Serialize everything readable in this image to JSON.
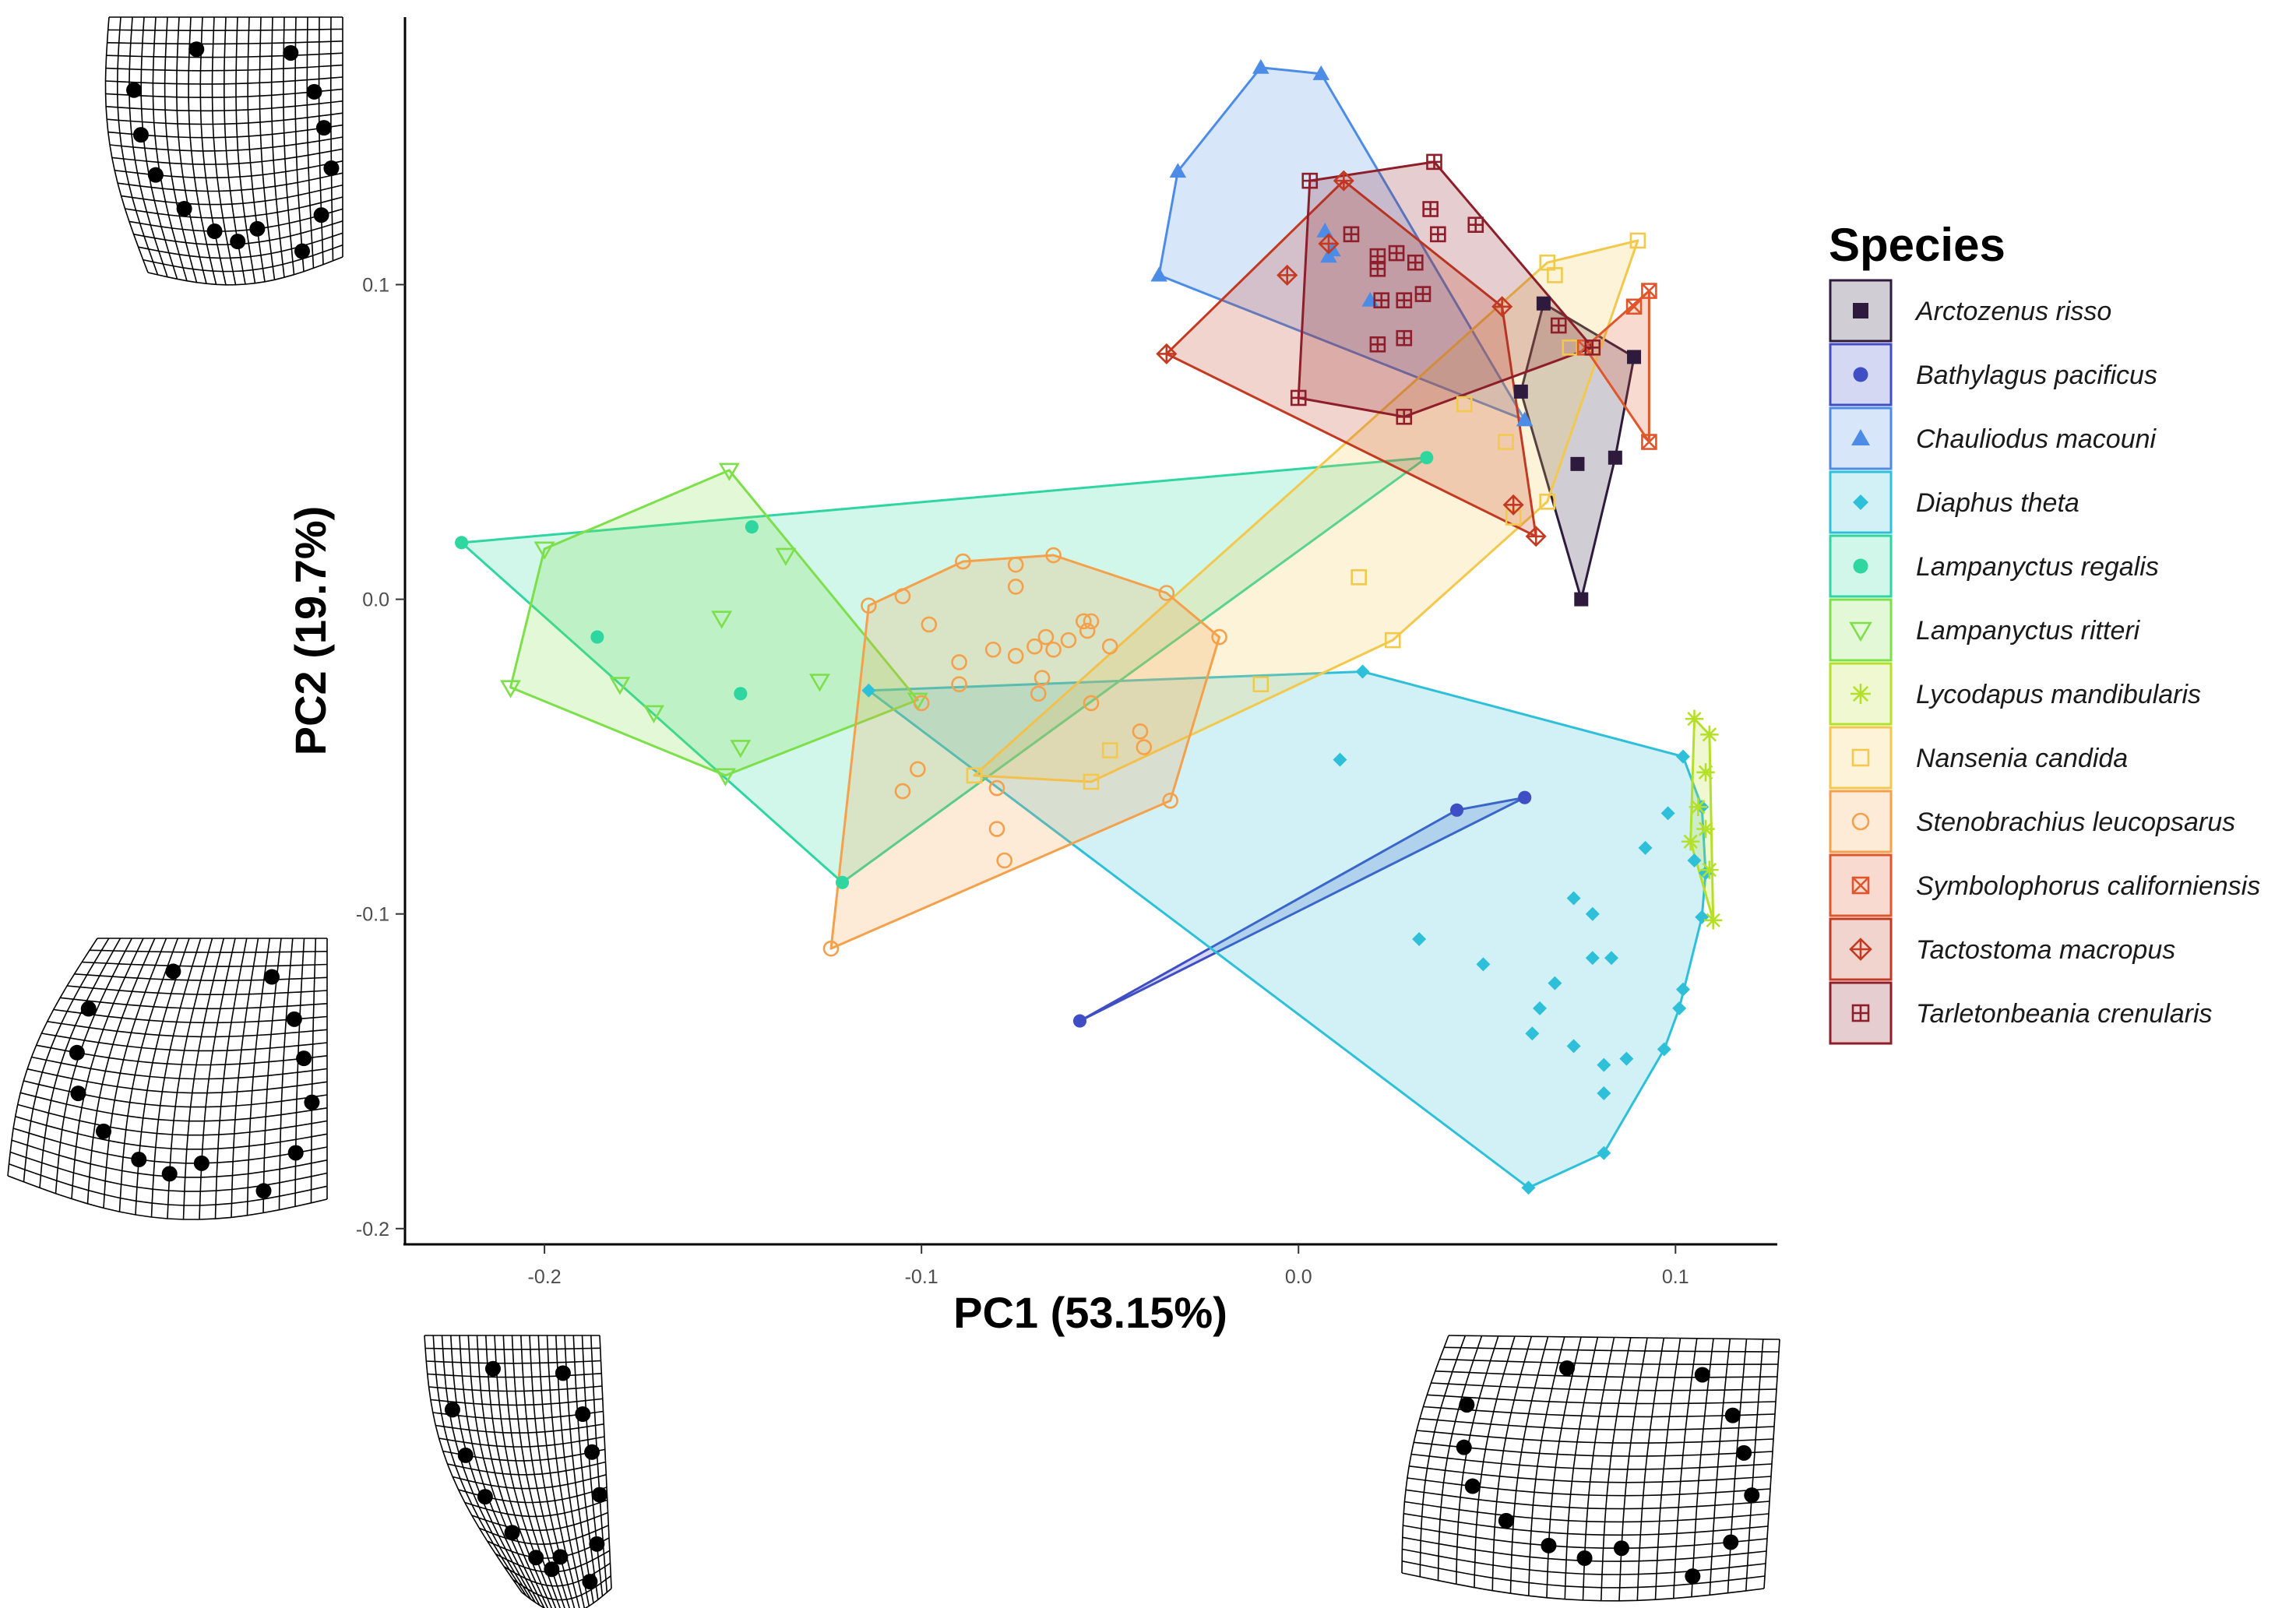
{
  "chart_data": {
    "type": "scatter",
    "xlabel": "PC1 (53.15%)",
    "ylabel": "PC2 (19.7%)",
    "xlim": [
      -0.237,
      0.127
    ],
    "ylim": [
      -0.205,
      0.185
    ],
    "x_ticks": [
      -0.2,
      -0.1,
      0.0,
      0.1
    ],
    "x_tick_labels": [
      "-0.2",
      "-0.1",
      "0.0",
      "0.1"
    ],
    "y_ticks": [
      -0.2,
      -0.1,
      0.0,
      0.1
    ],
    "y_tick_labels": [
      "-0.2",
      "-0.1",
      "0.0",
      "0.1"
    ],
    "grid": false,
    "hulls": true,
    "legend_title": "Species",
    "legend_position": "right",
    "series": [
      {
        "name": "Arctozenus risso",
        "color": "#2d1a3c",
        "marker": "square",
        "points": [
          [
            0.065,
            0.094
          ],
          [
            0.059,
            0.066
          ],
          [
            0.075,
            0.0
          ],
          [
            0.074,
            0.043
          ],
          [
            0.084,
            0.045
          ],
          [
            0.089,
            0.077
          ]
        ]
      },
      {
        "name": "Bathylagus pacificus",
        "color": "#3f4ec4",
        "marker": "circle",
        "points": [
          [
            -0.058,
            -0.134
          ],
          [
            0.042,
            -0.067
          ],
          [
            0.06,
            -0.063
          ]
        ]
      },
      {
        "name": "Chauliodus macouni",
        "color": "#4d8ce6",
        "marker": "triangle",
        "points": [
          [
            -0.01,
            0.169
          ],
          [
            0.006,
            0.167
          ],
          [
            -0.032,
            0.136
          ],
          [
            -0.037,
            0.103
          ],
          [
            0.007,
            0.117
          ],
          [
            0.009,
            0.111
          ],
          [
            0.008,
            0.109
          ],
          [
            0.019,
            0.095
          ],
          [
            0.06,
            0.057
          ]
        ]
      },
      {
        "name": "Diaphus theta",
        "color": "#2fc0d9",
        "marker": "diamond",
        "points": [
          [
            -0.114,
            -0.029
          ],
          [
            0.017,
            -0.023
          ],
          [
            0.011,
            -0.051
          ],
          [
            0.102,
            -0.05
          ],
          [
            0.107,
            -0.066
          ],
          [
            0.098,
            -0.068
          ],
          [
            0.108,
            -0.087
          ],
          [
            0.105,
            -0.083
          ],
          [
            0.092,
            -0.079
          ],
          [
            0.107,
            -0.101
          ],
          [
            0.078,
            -0.1
          ],
          [
            0.073,
            -0.095
          ],
          [
            0.083,
            -0.114
          ],
          [
            0.078,
            -0.114
          ],
          [
            0.032,
            -0.108
          ],
          [
            0.049,
            -0.116
          ],
          [
            0.068,
            -0.122
          ],
          [
            0.102,
            -0.124
          ],
          [
            0.101,
            -0.13
          ],
          [
            0.064,
            -0.13
          ],
          [
            0.097,
            -0.143
          ],
          [
            0.062,
            -0.138
          ],
          [
            0.073,
            -0.142
          ],
          [
            0.081,
            -0.148
          ],
          [
            0.087,
            -0.146
          ],
          [
            0.081,
            -0.157
          ],
          [
            0.081,
            -0.176
          ],
          [
            0.061,
            -0.187
          ]
        ]
      },
      {
        "name": "Lampanyctus regalis",
        "color": "#2fd6a0",
        "marker": "circle",
        "points": [
          [
            -0.222,
            0.018
          ],
          [
            0.034,
            0.045
          ],
          [
            -0.145,
            0.023
          ],
          [
            -0.186,
            -0.012
          ],
          [
            -0.148,
            -0.03
          ],
          [
            -0.121,
            -0.09
          ]
        ]
      },
      {
        "name": "Lampanyctus ritteri",
        "color": "#7ddf4a",
        "marker": "triangle-down",
        "points": [
          [
            -0.151,
            0.041
          ],
          [
            -0.2,
            0.016
          ],
          [
            -0.136,
            0.014
          ],
          [
            -0.153,
            -0.006
          ],
          [
            -0.209,
            -0.028
          ],
          [
            -0.18,
            -0.027
          ],
          [
            -0.171,
            -0.036
          ],
          [
            -0.127,
            -0.026
          ],
          [
            -0.101,
            -0.032
          ],
          [
            -0.148,
            -0.047
          ],
          [
            -0.152,
            -0.056
          ]
        ]
      },
      {
        "name": "Lycodapus mandibularis",
        "color": "#b5e02a",
        "marker": "asterisk",
        "points": [
          [
            0.105,
            -0.038
          ],
          [
            0.109,
            -0.043
          ],
          [
            0.108,
            -0.055
          ],
          [
            0.106,
            -0.066
          ],
          [
            0.108,
            -0.073
          ],
          [
            0.104,
            -0.077
          ],
          [
            0.109,
            -0.086
          ],
          [
            0.11,
            -0.102
          ]
        ]
      },
      {
        "name": "Nansenia candida",
        "color": "#f2c94c",
        "marker": "square-open",
        "points": [
          [
            0.09,
            0.114
          ],
          [
            0.066,
            0.107
          ],
          [
            0.068,
            0.103
          ],
          [
            0.072,
            0.08
          ],
          [
            0.055,
            0.05
          ],
          [
            0.044,
            0.062
          ],
          [
            0.066,
            0.031
          ],
          [
            0.057,
            0.026
          ],
          [
            0.016,
            0.007
          ],
          [
            0.025,
            -0.013
          ],
          [
            -0.01,
            -0.027
          ],
          [
            -0.05,
            -0.048
          ],
          [
            -0.055,
            -0.058
          ],
          [
            -0.086,
            -0.056
          ]
        ]
      },
      {
        "name": "Stenobrachius leucopsarus",
        "color": "#f5a04a",
        "marker": "circle-open",
        "points": [
          [
            -0.114,
            -0.002
          ],
          [
            -0.105,
            0.001
          ],
          [
            -0.089,
            0.012
          ],
          [
            -0.075,
            0.011
          ],
          [
            -0.065,
            0.014
          ],
          [
            -0.075,
            0.004
          ],
          [
            -0.057,
            -0.007
          ],
          [
            -0.055,
            -0.007
          ],
          [
            -0.061,
            -0.013
          ],
          [
            -0.056,
            -0.01
          ],
          [
            -0.067,
            -0.012
          ],
          [
            -0.07,
            -0.015
          ],
          [
            -0.081,
            -0.016
          ],
          [
            -0.075,
            -0.018
          ],
          [
            -0.065,
            -0.016
          ],
          [
            -0.05,
            -0.015
          ],
          [
            -0.035,
            0.002
          ],
          [
            -0.021,
            -0.012
          ],
          [
            -0.1,
            -0.033
          ],
          [
            -0.09,
            -0.027
          ],
          [
            -0.055,
            -0.033
          ],
          [
            -0.068,
            -0.025
          ],
          [
            -0.069,
            -0.03
          ],
          [
            -0.042,
            -0.042
          ],
          [
            -0.041,
            -0.047
          ],
          [
            -0.034,
            -0.064
          ],
          [
            -0.101,
            -0.054
          ],
          [
            -0.105,
            -0.061
          ],
          [
            -0.08,
            -0.06
          ],
          [
            -0.08,
            -0.073
          ],
          [
            -0.078,
            -0.083
          ],
          [
            -0.124,
            -0.111
          ],
          [
            -0.098,
            -0.008
          ],
          [
            -0.09,
            -0.02
          ]
        ]
      },
      {
        "name": "Symbolophorus californiensis",
        "color": "#e0562c",
        "marker": "square-x",
        "points": [
          [
            0.089,
            0.093
          ],
          [
            0.093,
            0.098
          ],
          [
            0.076,
            0.08
          ],
          [
            0.093,
            0.05
          ]
        ]
      },
      {
        "name": "Tactostoma macropus",
        "color": "#c33a22",
        "marker": "diamond-plus",
        "points": [
          [
            0.012,
            0.133
          ],
          [
            -0.003,
            0.103
          ],
          [
            0.008,
            0.113
          ],
          [
            -0.035,
            0.078
          ],
          [
            0.054,
            0.093
          ],
          [
            0.057,
            0.03
          ],
          [
            0.063,
            0.02
          ]
        ]
      },
      {
        "name": "Tarletonbeania crenularis",
        "color": "#8e1e2a",
        "marker": "square-plus",
        "points": [
          [
            0.036,
            0.139
          ],
          [
            0.003,
            0.133
          ],
          [
            0.014,
            0.116
          ],
          [
            0.035,
            0.124
          ],
          [
            0.037,
            0.116
          ],
          [
            0.047,
            0.119
          ],
          [
            0.021,
            0.109
          ],
          [
            0.021,
            0.105
          ],
          [
            0.026,
            0.11
          ],
          [
            0.031,
            0.107
          ],
          [
            0.022,
            0.095
          ],
          [
            0.028,
            0.095
          ],
          [
            0.033,
            0.097
          ],
          [
            0.021,
            0.081
          ],
          [
            0.028,
            0.083
          ],
          [
            0.0,
            0.064
          ],
          [
            0.028,
            0.058
          ],
          [
            0.069,
            0.087
          ],
          [
            0.078,
            0.08
          ]
        ]
      }
    ]
  }
}
